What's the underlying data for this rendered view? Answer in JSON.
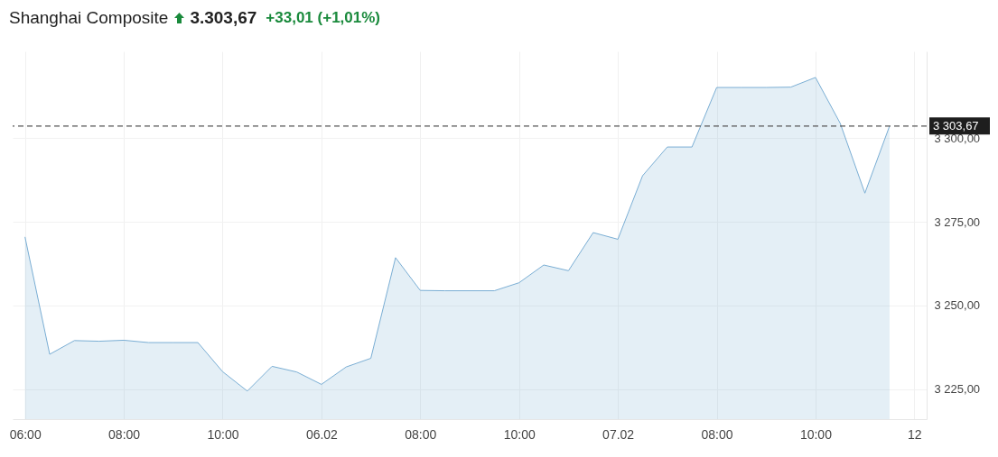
{
  "chart_data": {
    "type": "area",
    "title": "Shanghai Composite",
    "annotations": [
      "3.303,67",
      "+33,01 (+1,01%)"
    ],
    "categories": [
      "06:00",
      null,
      null,
      null,
      "08:00",
      null,
      null,
      null,
      "10:00",
      null,
      null,
      null,
      "06.02",
      null,
      null,
      null,
      "08:00",
      null,
      null,
      null,
      "10:00",
      null,
      null,
      null,
      "07.02",
      null,
      null,
      null,
      "08:00",
      null,
      null,
      null,
      "10:00",
      null,
      null,
      null,
      "12"
    ],
    "series": [
      {
        "color": "#7aaed4",
        "values": [
          3270.5,
          3235.4,
          3239.5,
          3239.3,
          3239.6,
          3238.9,
          3238.9,
          3238.9,
          3230.2,
          3224.4,
          3231.8,
          3230.1,
          3226.4,
          3231.6,
          3234.2,
          3264.3,
          3254.5,
          3254.4,
          3254.4,
          3254.4,
          3256.8,
          3262.1,
          3260.4,
          3271.8,
          3269.8,
          3288.8,
          3297.4,
          3297.4,
          3315.2,
          3315.2,
          3315.2,
          3315.3,
          3318.2,
          3304.5,
          3283.6,
          3303.7,
          null
        ]
      }
    ],
    "ylim": [
      3216,
      3326
    ],
    "yticks": [
      {
        "value": 3225,
        "label": "3 225,00"
      },
      {
        "value": 3250,
        "label": "3 250,00"
      },
      {
        "value": 3275,
        "label": "3 275,00"
      },
      {
        "value": 3300,
        "label": "3 300,00"
      }
    ],
    "grid": true,
    "ref_lines": [
      {
        "axis": "y",
        "value": 3303.67,
        "label": "3 303,67",
        "color": "#555555",
        "line_style": "dashed"
      }
    ]
  }
}
